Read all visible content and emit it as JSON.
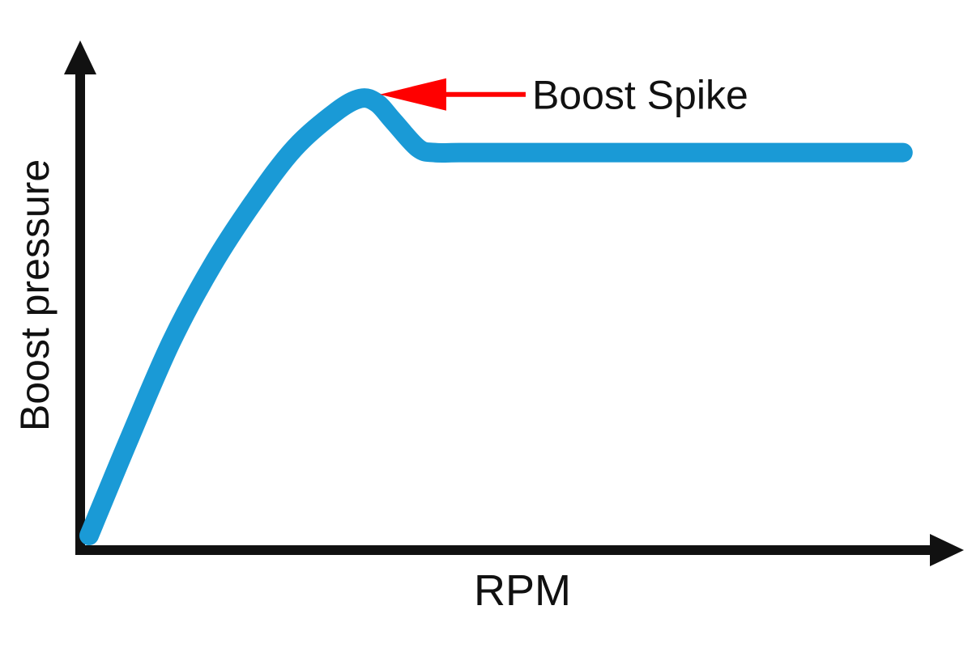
{
  "chart_data": {
    "type": "line",
    "title": "",
    "xlabel": "RPM",
    "ylabel": "Boost pressure",
    "xlim": [
      0,
      100
    ],
    "ylim": [
      0,
      100
    ],
    "grid": false,
    "ticks": false,
    "series": [
      {
        "color": "#1a9ad6",
        "x": [
          0,
          5,
          10,
          15,
          20,
          25,
          30,
          33,
          35,
          37,
          40,
          42,
          45,
          50,
          60,
          70,
          80,
          90,
          99
        ],
        "y": [
          0,
          22,
          43,
          60,
          74,
          86,
          94,
          97,
          96,
          92,
          86,
          85,
          85,
          85,
          85,
          85,
          85,
          85,
          85
        ]
      }
    ],
    "annotations": [
      {
        "text": "Boost Spike",
        "arrow_color": "#ff0000",
        "x": 33,
        "y": 97
      }
    ]
  }
}
